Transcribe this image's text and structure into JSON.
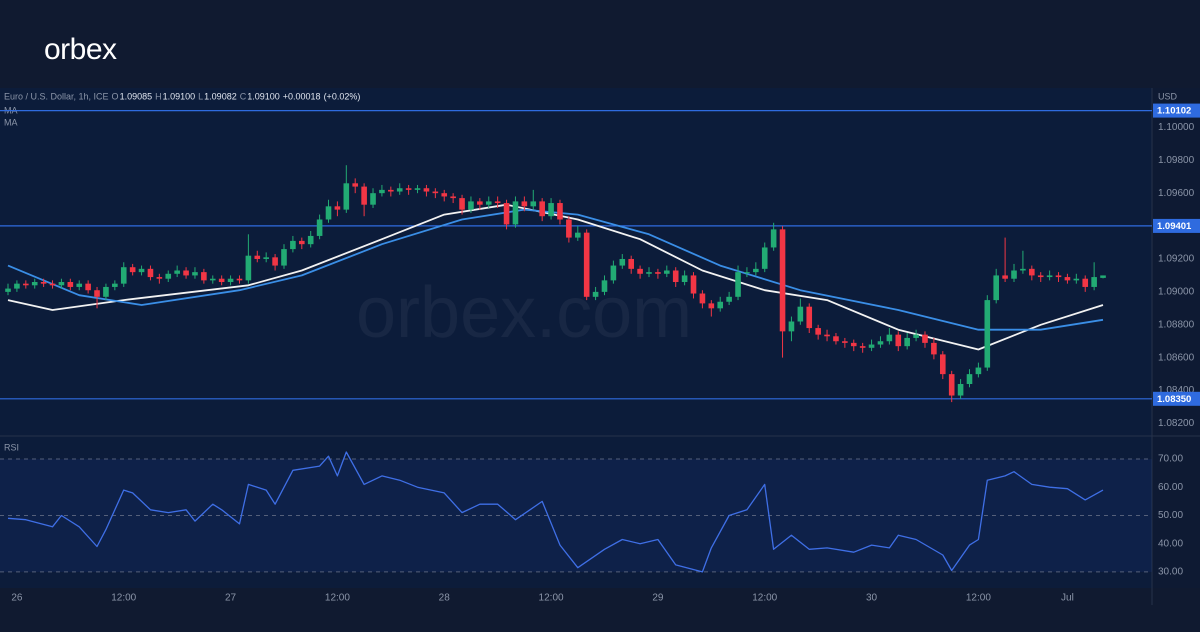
{
  "brand": "orbex",
  "chart_data": {
    "type": "candlestick",
    "symbol": "Euro / U.S. Dollar, 1h, ICE",
    "ohlc_legend": [
      {
        "key": "O",
        "value": 1.09085
      },
      {
        "key": "H",
        "value": 1.091,
        "label": "1.09100"
      },
      {
        "key": "L",
        "value": 1.09082
      },
      {
        "key": "C",
        "value": 1.091,
        "label": "1.09100"
      }
    ],
    "change": {
      "value": 0.00018,
      "label": "+0.00018"
    },
    "change_percent": {
      "value": 0.02,
      "label": "(+0.02%)"
    },
    "currency": "USD",
    "watermark": "orbex.com",
    "up_color": "#22ab74",
    "down_color": "#f23645",
    "x": [
      -1,
      0,
      1,
      2,
      3,
      4,
      5,
      6,
      7,
      8,
      9,
      10,
      11,
      12,
      13,
      14,
      15,
      16,
      17,
      18,
      19,
      20,
      21,
      22,
      23,
      24,
      25,
      26,
      27,
      28,
      29,
      30,
      31,
      32,
      33,
      34,
      35,
      36,
      37,
      38,
      39,
      40,
      41,
      42,
      43,
      44,
      45,
      46,
      47,
      48,
      49,
      50,
      51,
      52,
      53,
      54,
      55,
      56,
      57,
      58,
      59,
      60,
      61,
      62,
      63,
      64,
      65,
      66,
      67,
      68,
      69,
      70,
      71,
      72,
      73,
      74,
      75,
      76,
      77,
      78,
      79,
      80,
      81,
      82,
      83,
      84,
      85,
      86,
      87,
      88,
      89,
      90,
      91,
      92,
      93,
      94,
      95,
      96,
      97,
      98,
      99,
      100,
      101,
      102,
      103,
      104,
      105,
      106,
      107,
      108,
      109,
      110,
      111,
      112,
      113,
      114,
      115,
      116,
      117,
      118,
      119,
      120,
      121,
      122
    ],
    "candles": [
      [
        1.09,
        1.0905,
        1.0898,
        1.0902
      ],
      [
        1.0902,
        1.0907,
        1.09,
        1.0905
      ],
      [
        1.0905,
        1.0907,
        1.0902,
        1.0904
      ],
      [
        1.0904,
        1.0908,
        1.0902,
        1.0906
      ],
      [
        1.0906,
        1.0908,
        1.0903,
        1.0905
      ],
      [
        1.0905,
        1.0907,
        1.0902,
        1.0904
      ],
      [
        1.0904,
        1.0908,
        1.0902,
        1.0906
      ],
      [
        1.0906,
        1.0908,
        1.0901,
        1.0903
      ],
      [
        1.0903,
        1.0907,
        1.0901,
        1.0905
      ],
      [
        1.0905,
        1.0907,
        1.0899,
        1.0901
      ],
      [
        1.0901,
        1.0903,
        1.089,
        1.0897
      ],
      [
        1.0897,
        1.0905,
        1.0895,
        1.0903
      ],
      [
        1.0903,
        1.0907,
        1.0901,
        1.0905
      ],
      [
        1.0905,
        1.0918,
        1.0903,
        1.0915
      ],
      [
        1.0915,
        1.0917,
        1.091,
        1.0912
      ],
      [
        1.0912,
        1.0916,
        1.091,
        1.0914
      ],
      [
        1.0914,
        1.0916,
        1.0907,
        1.0909
      ],
      [
        1.0909,
        1.0911,
        1.0905,
        1.0908
      ],
      [
        1.0908,
        1.0913,
        1.0906,
        1.0911
      ],
      [
        1.0911,
        1.0916,
        1.0909,
        1.0913
      ],
      [
        1.0913,
        1.0915,
        1.0908,
        1.091
      ],
      [
        1.091,
        1.0915,
        1.0908,
        1.0912
      ],
      [
        1.0912,
        1.0914,
        1.0905,
        1.0907
      ],
      [
        1.0907,
        1.091,
        1.0905,
        1.0908
      ],
      [
        1.0908,
        1.091,
        1.0904,
        1.0906
      ],
      [
        1.0906,
        1.091,
        1.0904,
        1.0908
      ],
      [
        1.0908,
        1.091,
        1.0905,
        1.0907
      ],
      [
        1.0907,
        1.0935,
        1.0905,
        1.0922
      ],
      [
        1.0922,
        1.0925,
        1.0918,
        1.092
      ],
      [
        1.092,
        1.0924,
        1.0918,
        1.0921
      ],
      [
        1.0921,
        1.0923,
        1.0913,
        1.0916
      ],
      [
        1.0916,
        1.0929,
        1.0914,
        1.0926
      ],
      [
        1.0926,
        1.0934,
        1.0924,
        1.0931
      ],
      [
        1.0931,
        1.0933,
        1.0926,
        1.0929
      ],
      [
        1.0929,
        1.0937,
        1.0927,
        1.0934
      ],
      [
        1.0934,
        1.0947,
        1.0932,
        1.0944
      ],
      [
        1.0944,
        1.0956,
        1.0942,
        1.0952
      ],
      [
        1.0952,
        1.0955,
        1.0946,
        1.095
      ],
      [
        1.095,
        1.0977,
        1.0948,
        1.0966
      ],
      [
        1.0966,
        1.0969,
        1.096,
        1.0964
      ],
      [
        1.0964,
        1.0966,
        1.0946,
        1.0953
      ],
      [
        1.0953,
        1.0963,
        1.0951,
        1.096
      ],
      [
        1.096,
        1.0965,
        1.0958,
        1.0962
      ],
      [
        1.0962,
        1.0964,
        1.0958,
        1.0961
      ],
      [
        1.0961,
        1.0966,
        1.0959,
        1.0963
      ],
      [
        1.0963,
        1.0965,
        1.0959,
        1.0962
      ],
      [
        1.0962,
        1.0965,
        1.096,
        1.0963
      ],
      [
        1.0963,
        1.0965,
        1.0958,
        1.0961
      ],
      [
        1.0961,
        1.0963,
        1.0957,
        1.096
      ],
      [
        1.096,
        1.0962,
        1.0955,
        1.0958
      ],
      [
        1.0958,
        1.096,
        1.0954,
        1.0957
      ],
      [
        1.0957,
        1.0959,
        1.0947,
        1.095
      ],
      [
        1.095,
        1.0958,
        1.0948,
        1.0955
      ],
      [
        1.0955,
        1.0957,
        1.095,
        1.0953
      ],
      [
        1.0953,
        1.0958,
        1.0951,
        1.0955
      ],
      [
        1.0955,
        1.0958,
        1.0951,
        1.0954
      ],
      [
        1.0954,
        1.0956,
        1.0938,
        1.0941
      ],
      [
        1.0941,
        1.0958,
        1.0939,
        1.0955
      ],
      [
        1.0955,
        1.0958,
        1.0949,
        1.0952
      ],
      [
        1.0952,
        1.0962,
        1.095,
        1.0955
      ],
      [
        1.0955,
        1.0957,
        1.0943,
        1.0946
      ],
      [
        1.0946,
        1.0957,
        1.0944,
        1.0954
      ],
      [
        1.0954,
        1.0956,
        1.0941,
        1.0944
      ],
      [
        1.0944,
        1.0946,
        1.093,
        1.0933
      ],
      [
        1.0933,
        1.094,
        1.0931,
        1.0936
      ],
      [
        1.0936,
        1.0938,
        1.0895,
        1.0897
      ],
      [
        1.0897,
        1.0903,
        1.0895,
        1.09
      ],
      [
        1.09,
        1.091,
        1.0898,
        1.0907
      ],
      [
        1.0907,
        1.0919,
        1.0905,
        1.0916
      ],
      [
        1.0916,
        1.0923,
        1.0914,
        1.092
      ],
      [
        1.092,
        1.0922,
        1.0911,
        1.0914
      ],
      [
        1.0914,
        1.0916,
        1.0908,
        1.0911
      ],
      [
        1.0911,
        1.0915,
        1.0909,
        1.0912
      ],
      [
        1.0912,
        1.0914,
        1.0908,
        1.0911
      ],
      [
        1.0911,
        1.0916,
        1.0909,
        1.0913
      ],
      [
        1.0913,
        1.0915,
        1.0903,
        1.0906
      ],
      [
        1.0906,
        1.0913,
        1.0904,
        1.091
      ],
      [
        1.091,
        1.0912,
        1.0896,
        1.0899
      ],
      [
        1.0899,
        1.0901,
        1.089,
        1.0893
      ],
      [
        1.0893,
        1.0895,
        1.0885,
        1.089
      ],
      [
        1.089,
        1.0897,
        1.0888,
        1.0894
      ],
      [
        1.0894,
        1.09,
        1.0892,
        1.0897
      ],
      [
        1.0897,
        1.0916,
        1.0895,
        1.0912
      ],
      [
        1.0912,
        1.0915,
        1.0909,
        1.0912
      ],
      [
        1.0912,
        1.0918,
        1.091,
        1.0914
      ],
      [
        1.0914,
        1.093,
        1.0912,
        1.0927
      ],
      [
        1.0927,
        1.0942,
        1.0925,
        1.0938
      ],
      [
        1.0938,
        1.094,
        1.086,
        1.0876
      ],
      [
        1.0876,
        1.0885,
        1.087,
        1.0882
      ],
      [
        1.0882,
        1.0896,
        1.088,
        1.0891
      ],
      [
        1.0891,
        1.0893,
        1.0875,
        1.0878
      ],
      [
        1.0878,
        1.088,
        1.0871,
        1.0874
      ],
      [
        1.0874,
        1.0877,
        1.087,
        1.0873
      ],
      [
        1.0873,
        1.0875,
        1.0868,
        1.087
      ],
      [
        1.087,
        1.0872,
        1.0866,
        1.0869
      ],
      [
        1.0869,
        1.0871,
        1.0864,
        1.0867
      ],
      [
        1.0867,
        1.0869,
        1.0863,
        1.0866
      ],
      [
        1.0866,
        1.0871,
        1.0864,
        1.0868
      ],
      [
        1.0868,
        1.0873,
        1.0866,
        1.087
      ],
      [
        1.087,
        1.0878,
        1.0868,
        1.0874
      ],
      [
        1.0874,
        1.0876,
        1.0864,
        1.0867
      ],
      [
        1.0867,
        1.0875,
        1.0865,
        1.0872
      ],
      [
        1.0872,
        1.0877,
        1.087,
        1.0874
      ],
      [
        1.0874,
        1.0876,
        1.0866,
        1.0869
      ],
      [
        1.0869,
        1.0872,
        1.0859,
        1.0862
      ],
      [
        1.0862,
        1.0864,
        1.0847,
        1.085
      ],
      [
        1.085,
        1.0852,
        1.0833,
        1.0837
      ],
      [
        1.0837,
        1.0847,
        1.0835,
        1.0844
      ],
      [
        1.0844,
        1.0853,
        1.0842,
        1.085
      ],
      [
        1.085,
        1.0857,
        1.0848,
        1.0854
      ],
      [
        1.0854,
        1.0898,
        1.0852,
        1.0895
      ],
      [
        1.0895,
        1.0914,
        1.0893,
        1.091
      ],
      [
        1.091,
        1.0933,
        1.0906,
        1.0908
      ],
      [
        1.0908,
        1.0917,
        1.0906,
        1.0913
      ],
      [
        1.0913,
        1.0925,
        1.0911,
        1.0914
      ],
      [
        1.0914,
        1.0916,
        1.0907,
        1.091
      ],
      [
        1.091,
        1.0912,
        1.0906,
        1.0909
      ],
      [
        1.0909,
        1.0913,
        1.0907,
        1.091
      ],
      [
        1.091,
        1.0912,
        1.0906,
        1.0909
      ],
      [
        1.0909,
        1.0911,
        1.0905,
        1.0907
      ],
      [
        1.0907,
        1.0911,
        1.0905,
        1.0908
      ],
      [
        1.0908,
        1.091,
        1.09,
        1.0903
      ],
      [
        1.0903,
        1.0918,
        1.0901,
        1.0909
      ],
      [
        1.09085,
        1.091,
        1.09082,
        1.091
      ]
    ],
    "overlays": [
      {
        "name": "MA",
        "color": "#f2f2f2",
        "x": [
          -1,
          4,
          12,
          26,
          32,
          41,
          48,
          55,
          63,
          70,
          77,
          84,
          91,
          99,
          108,
          115,
          122
        ],
        "values": [
          1.0895,
          1.0889,
          1.0895,
          1.0904,
          1.0913,
          1.0932,
          1.0947,
          1.0953,
          1.0944,
          1.0932,
          1.0913,
          1.0901,
          1.0895,
          1.0877,
          1.0865,
          1.088,
          1.0892
        ]
      },
      {
        "name": "MA",
        "color": "#3a8ee6",
        "x": [
          -1,
          7,
          14,
          25,
          32,
          41,
          50,
          57,
          63,
          71,
          79,
          88,
          99,
          108,
          115,
          122
        ],
        "values": [
          1.0916,
          1.0898,
          1.0892,
          1.0901,
          1.091,
          1.0929,
          1.0944,
          1.095,
          1.0947,
          1.0935,
          1.0916,
          1.0901,
          1.0889,
          1.0877,
          1.0877,
          1.0883
        ]
      }
    ],
    "levels": [
      1.10102,
      1.09401,
      {
        "value": 1.0835,
        "label": "1.08350"
      }
    ],
    "level_color": "#2f6bdf",
    "xlim": [
      -1.9,
      127.5
    ],
    "xticks": [
      {
        "value": 0,
        "label": "26"
      },
      {
        "value": 12,
        "label": "12:00"
      },
      {
        "value": 24,
        "label": "27"
      },
      {
        "value": 36,
        "label": "12:00"
      },
      {
        "value": 48,
        "label": "28"
      },
      {
        "value": 60,
        "label": "12:00"
      },
      {
        "value": 72,
        "label": "29"
      },
      {
        "value": 84,
        "label": "12:00"
      },
      {
        "value": 96,
        "label": "30"
      },
      {
        "value": 108,
        "label": "12:00"
      },
      {
        "value": 118,
        "label": "Jul"
      }
    ],
    "ylim": [
      1.0813,
      1.10215
    ],
    "yticks": [
      {
        "value": 1.082,
        "label": "1.08200"
      },
      {
        "value": 1.084,
        "label": "1.08400"
      },
      {
        "value": 1.086,
        "label": "1.08600"
      },
      {
        "value": 1.088,
        "label": "1.08800"
      },
      {
        "value": 1.09,
        "label": "1.09000"
      },
      {
        "value": 1.092,
        "label": "1.09200"
      },
      {
        "value": 1.096,
        "label": "1.09600"
      },
      {
        "value": 1.098,
        "label": "1.09800"
      },
      {
        "value": 1.1,
        "label": "1.10000"
      }
    ],
    "rsi": {
      "title": "RSI",
      "color": "#3f6fe6",
      "x": [
        -1,
        1,
        4,
        5,
        7,
        9,
        10,
        12,
        13,
        15,
        17,
        19,
        20,
        22,
        23,
        25,
        26,
        28,
        29,
        31,
        34,
        35,
        36,
        37,
        39,
        41,
        43,
        45,
        48,
        50,
        52,
        54,
        56,
        59,
        61,
        63,
        66,
        68,
        70,
        72,
        74,
        77,
        78,
        80,
        82,
        84,
        85,
        87,
        89,
        91,
        94,
        96,
        98,
        99,
        101,
        104,
        105,
        107,
        108,
        109,
        111,
        112,
        114,
        116,
        118,
        120,
        122
      ],
      "values": [
        49,
        48.5,
        46,
        50,
        46,
        39,
        45,
        59,
        58,
        52,
        51,
        52,
        48,
        54,
        52,
        47,
        61,
        59,
        54,
        66,
        67.5,
        71,
        64,
        72.5,
        61,
        64,
        62.5,
        60,
        58,
        51,
        54,
        54,
        48.5,
        55,
        39.5,
        31.5,
        38,
        41.5,
        40,
        41.5,
        32.5,
        30,
        38.5,
        50,
        52,
        61,
        38,
        43,
        38,
        38.5,
        37,
        39.5,
        38.5,
        43,
        41.5,
        36,
        30.5,
        39.5,
        41.5,
        62.5,
        64,
        65.5,
        61,
        60,
        59.5,
        55.5,
        59
      ],
      "ylim": [
        24.3,
        77.8
      ],
      "yticks": [
        {
          "value": 30,
          "label": "30.00"
        },
        {
          "value": 40,
          "label": "40.00"
        },
        {
          "value": 50,
          "label": "50.00"
        },
        {
          "value": 60,
          "label": "60.00"
        },
        {
          "value": 70,
          "label": "70.00"
        }
      ],
      "guides": [
        30,
        50,
        70
      ]
    }
  }
}
